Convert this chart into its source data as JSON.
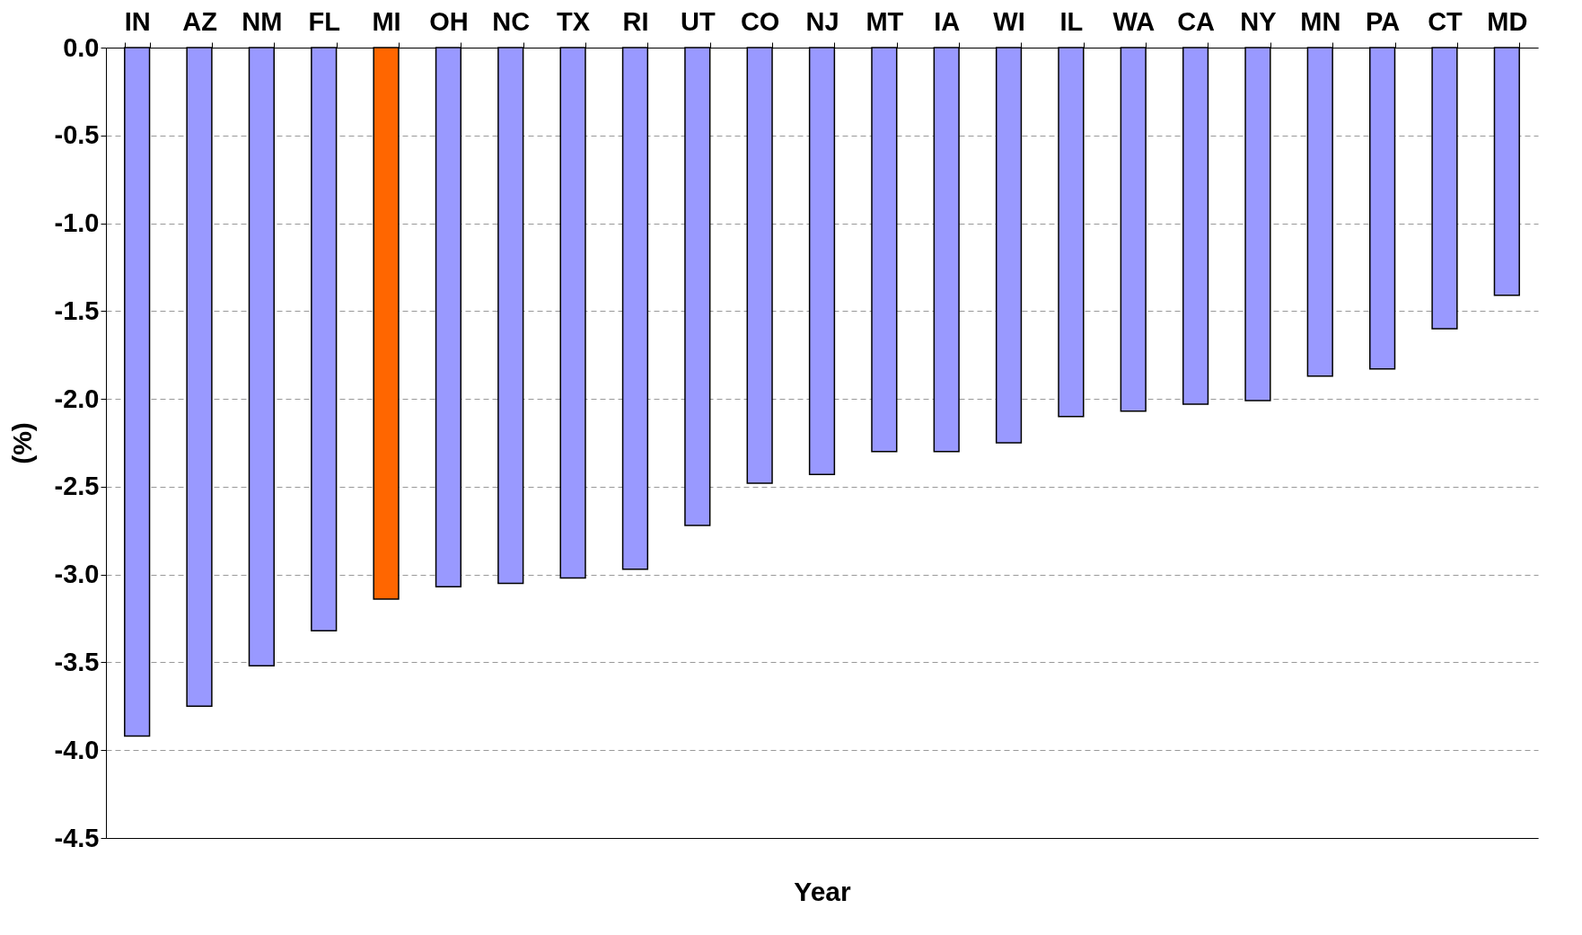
{
  "chart_data": {
    "type": "bar",
    "xlabel": "Year",
    "ylabel": "(%)",
    "categories": [
      "IN",
      "AZ",
      "NM",
      "FL",
      "MI",
      "OH",
      "NC",
      "TX",
      "RI",
      "UT",
      "CO",
      "NJ",
      "MT",
      "IA",
      "WI",
      "IL",
      "WA",
      "CA",
      "NY",
      "MN",
      "PA",
      "CT",
      "MD"
    ],
    "values": [
      -3.92,
      -3.75,
      -3.52,
      -3.32,
      -3.14,
      -3.07,
      -3.05,
      -3.02,
      -2.97,
      -2.72,
      -2.48,
      -2.43,
      -2.3,
      -2.3,
      -2.25,
      -2.1,
      -2.07,
      -2.03,
      -2.01,
      -1.87,
      -1.83,
      -1.6,
      -1.41
    ],
    "colors": [
      "#9999ff",
      "#9999ff",
      "#9999ff",
      "#9999ff",
      "#ff6600",
      "#9999ff",
      "#9999ff",
      "#9999ff",
      "#9999ff",
      "#9999ff",
      "#9999ff",
      "#9999ff",
      "#9999ff",
      "#9999ff",
      "#9999ff",
      "#9999ff",
      "#9999ff",
      "#9999ff",
      "#9999ff",
      "#9999ff",
      "#9999ff",
      "#9999ff",
      "#9999ff"
    ],
    "ylim": [
      -4.5,
      0
    ],
    "yticks": [
      {
        "value": 0,
        "label": "0.0"
      },
      {
        "value": -0.5,
        "label": "-0.5"
      },
      {
        "value": -1,
        "label": "-1.0"
      },
      {
        "value": -1.5,
        "label": "-1.5"
      },
      {
        "value": -2,
        "label": "-2.0"
      },
      {
        "value": -2.5,
        "label": "-2.5"
      },
      {
        "value": -3,
        "label": "-3.0"
      },
      {
        "value": -3.5,
        "label": "-3.5"
      },
      {
        "value": -4,
        "label": "-4.0"
      },
      {
        "value": -4.5,
        "label": "-4.5"
      }
    ],
    "grid": "y"
  }
}
